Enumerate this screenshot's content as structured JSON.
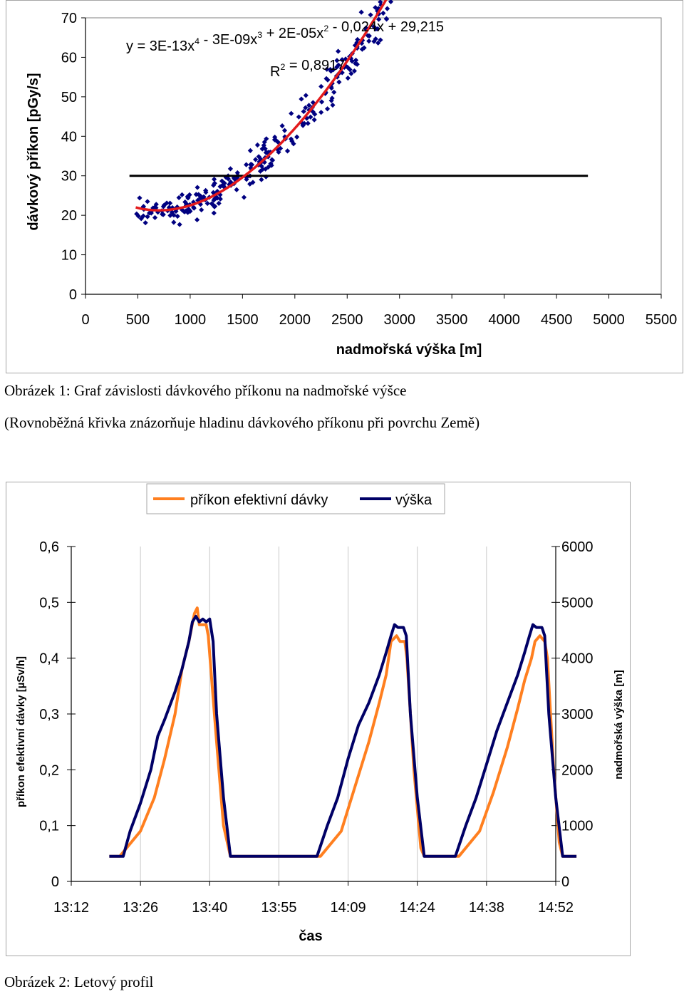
{
  "figure1": {
    "caption": "Obrázek 1: Graf závislosti dávkového příkonu na nadmořské výšce",
    "caption_sub": "(Rovnoběžná křivka znázorňuje hladinu dávkového příkonu při povrchu Země)"
  },
  "figure2": {
    "caption": "Obrázek 2: Letový profil"
  },
  "chart_data": [
    {
      "type": "scatter",
      "xlabel": "nadmořská výška [m]",
      "ylabel": "dávkový příkon [pGy/s]",
      "xlim": [
        0,
        5500
      ],
      "ylim": [
        0,
        70
      ],
      "xticks": [
        0,
        500,
        1000,
        1500,
        2000,
        2500,
        3000,
        3500,
        4000,
        4500,
        5000,
        5500
      ],
      "yticks": [
        0,
        10,
        20,
        30,
        40,
        50,
        60,
        70
      ],
      "grid": false,
      "marker_color": "#000080",
      "trend_color": "#e31a1c",
      "reference_color": "#000000",
      "trendline": {
        "equation": "y = 3E-13x4 - 3E-09x3 + 2E-05x2 - 0,024x + 29,215",
        "r2": "R2 = 0,8917",
        "x_range": [
          480,
          4800
        ]
      },
      "reference_line": {
        "y": 30,
        "x_range": [
          420,
          4800
        ]
      }
    },
    {
      "type": "line",
      "xlabel": "čas",
      "ylabel_left": "příkon efektivní dávky [µSv/h]",
      "ylabel_right": "nadmořská výška [m]",
      "x_ticks": [
        "13:12",
        "13:26",
        "13:40",
        "13:55",
        "14:09",
        "14:24",
        "14:38",
        "14:52"
      ],
      "ylim_left": [
        0,
        0.6
      ],
      "yticks_left": [
        "0",
        "0,1",
        "0,2",
        "0,3",
        "0,4",
        "0,5",
        "0,6"
      ],
      "ylim_right": [
        0,
        6000
      ],
      "yticks_right": [
        "0",
        "1000",
        "2000",
        "3000",
        "4000",
        "5000",
        "6000"
      ],
      "grid": "vertical",
      "legend_position": "top",
      "series": [
        {
          "name": "příkon efektivní dávky",
          "axis": "left",
          "color": "#ff7f1f",
          "points": [
            [
              0.55,
              0.045
            ],
            [
              0.7,
              0.045
            ],
            [
              1.0,
              0.09
            ],
            [
              1.2,
              0.15
            ],
            [
              1.35,
              0.22
            ],
            [
              1.5,
              0.3
            ],
            [
              1.6,
              0.38
            ],
            [
              1.7,
              0.43
            ],
            [
              1.78,
              0.48
            ],
            [
              1.82,
              0.49
            ],
            [
              1.85,
              0.46
            ],
            [
              1.95,
              0.46
            ],
            [
              1.98,
              0.44
            ],
            [
              2.1,
              0.25
            ],
            [
              2.2,
              0.1
            ],
            [
              2.3,
              0.045
            ],
            [
              3.45,
              0.045
            ],
            [
              3.6,
              0.045
            ],
            [
              3.9,
              0.09
            ],
            [
              4.1,
              0.17
            ],
            [
              4.3,
              0.25
            ],
            [
              4.45,
              0.32
            ],
            [
              4.55,
              0.37
            ],
            [
              4.62,
              0.43
            ],
            [
              4.7,
              0.44
            ],
            [
              4.75,
              0.43
            ],
            [
              4.82,
              0.43
            ],
            [
              4.85,
              0.4
            ],
            [
              4.95,
              0.2
            ],
            [
              5.05,
              0.06
            ],
            [
              5.1,
              0.045
            ],
            [
              5.45,
              0.045
            ],
            [
              5.6,
              0.045
            ],
            [
              5.9,
              0.09
            ],
            [
              6.1,
              0.16
            ],
            [
              6.3,
              0.24
            ],
            [
              6.45,
              0.31
            ],
            [
              6.55,
              0.36
            ],
            [
              6.65,
              0.4
            ],
            [
              6.7,
              0.43
            ],
            [
              6.77,
              0.44
            ],
            [
              6.84,
              0.43
            ],
            [
              6.88,
              0.4
            ],
            [
              6.97,
              0.2
            ],
            [
              7.05,
              0.07
            ],
            [
              7.1,
              0.045
            ],
            [
              7.3,
              0.045
            ]
          ]
        },
        {
          "name": "výška",
          "axis": "right",
          "color": "#000066",
          "points": [
            [
              0.55,
              450
            ],
            [
              0.75,
              450
            ],
            [
              0.85,
              900
            ],
            [
              1.0,
              1400
            ],
            [
              1.15,
              2000
            ],
            [
              1.25,
              2600
            ],
            [
              1.35,
              2900
            ],
            [
              1.5,
              3400
            ],
            [
              1.6,
              3800
            ],
            [
              1.7,
              4300
            ],
            [
              1.75,
              4650
            ],
            [
              1.8,
              4750
            ],
            [
              1.85,
              4650
            ],
            [
              1.9,
              4700
            ],
            [
              1.95,
              4650
            ],
            [
              2.0,
              4700
            ],
            [
              2.05,
              4300
            ],
            [
              2.1,
              3000
            ],
            [
              2.2,
              1500
            ],
            [
              2.3,
              450
            ],
            [
              3.45,
              450
            ],
            [
              3.55,
              450
            ],
            [
              3.7,
              1000
            ],
            [
              3.85,
              1500
            ],
            [
              4.0,
              2200
            ],
            [
              4.15,
              2800
            ],
            [
              4.3,
              3200
            ],
            [
              4.45,
              3700
            ],
            [
              4.55,
              4100
            ],
            [
              4.62,
              4400
            ],
            [
              4.67,
              4600
            ],
            [
              4.72,
              4550
            ],
            [
              4.8,
              4550
            ],
            [
              4.84,
              4400
            ],
            [
              4.9,
              3000
            ],
            [
              5.0,
              1500
            ],
            [
              5.1,
              450
            ],
            [
              5.45,
              450
            ],
            [
              5.55,
              450
            ],
            [
              5.7,
              1000
            ],
            [
              5.85,
              1500
            ],
            [
              6.0,
              2100
            ],
            [
              6.15,
              2700
            ],
            [
              6.3,
              3200
            ],
            [
              6.45,
              3700
            ],
            [
              6.55,
              4100
            ],
            [
              6.62,
              4400
            ],
            [
              6.67,
              4600
            ],
            [
              6.72,
              4550
            ],
            [
              6.8,
              4550
            ],
            [
              6.84,
              4400
            ],
            [
              6.9,
              3000
            ],
            [
              7.0,
              1500
            ],
            [
              7.1,
              450
            ],
            [
              7.3,
              450
            ]
          ]
        }
      ]
    }
  ]
}
